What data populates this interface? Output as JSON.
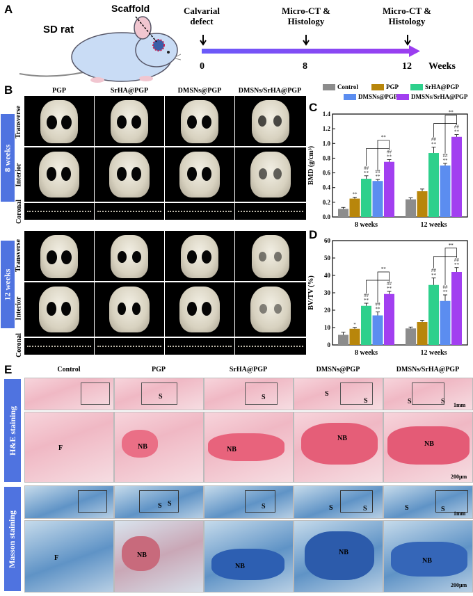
{
  "panels": {
    "A": "A",
    "B": "B",
    "C": "C",
    "D": "D",
    "E": "E"
  },
  "panel_a": {
    "rat_label": "SD rat",
    "scaffold_label": "Scaffold",
    "events": [
      {
        "label1": "Calvarial",
        "label2": "defect"
      },
      {
        "label1": "Micro-CT &",
        "label2": "Histology"
      },
      {
        "label1": "Micro-CT &",
        "label2": "Histology"
      }
    ],
    "ticks": [
      "0",
      "8",
      "12"
    ],
    "unit": "Weeks",
    "colors": {
      "arrow_start": "#6a5af9",
      "arrow_end": "#9b3df0"
    }
  },
  "panel_b": {
    "columns": [
      "PGP",
      "SrHA@PGP",
      "DMSNs@PGP",
      "DMSNs/SrHA@PGP"
    ],
    "groups": [
      {
        "label": "8 weeks",
        "rows": [
          "Transverse",
          "Interior",
          "Coronal"
        ]
      },
      {
        "label": "12 weeks",
        "rows": [
          "Transverse",
          "Interior",
          "Coronal"
        ]
      }
    ]
  },
  "legend": [
    {
      "name": "Control",
      "color": "#8c8c8c"
    },
    {
      "name": "PGP",
      "color": "#b8860b"
    },
    {
      "name": "SrHA@PGP",
      "color": "#2ed08c"
    },
    {
      "name": "DMSNs@PGP",
      "color": "#5b8df0"
    },
    {
      "name": "DMSNs/SrHA@PGP",
      "color": "#a23ff0"
    }
  ],
  "chart_data": [
    {
      "type": "bar",
      "panel": "C",
      "ylabel": "BMD (g/cm³)",
      "ylim": [
        0.0,
        1.4
      ],
      "yticks": [
        "0.0",
        "0.2",
        "0.4",
        "0.6",
        "0.8",
        "1.0",
        "1.2",
        "1.4"
      ],
      "categories": [
        "8 weeks",
        "12 weeks"
      ],
      "series": [
        {
          "name": "Control",
          "values": [
            0.11,
            0.24
          ],
          "errors": [
            0.02,
            0.02
          ],
          "marks": [
            "",
            ""
          ]
        },
        {
          "name": "PGP",
          "values": [
            0.25,
            0.35
          ],
          "errors": [
            0.02,
            0.03
          ],
          "marks": [
            "**",
            ""
          ]
        },
        {
          "name": "SrHA@PGP",
          "values": [
            0.52,
            0.87
          ],
          "errors": [
            0.04,
            0.08
          ],
          "marks": [
            "##\n**",
            "##\n**"
          ]
        },
        {
          "name": "DMSNs@PGP",
          "values": [
            0.49,
            0.7
          ],
          "errors": [
            0.02,
            0.03
          ],
          "marks": [
            "##\n**",
            "##\n**"
          ]
        },
        {
          "name": "DMSNs/SrHA@PGP",
          "values": [
            0.75,
            1.09
          ],
          "errors": [
            0.03,
            0.03
          ],
          "marks": [
            "##\n**",
            "##\n**"
          ]
        }
      ],
      "sig": "**"
    },
    {
      "type": "bar",
      "panel": "D",
      "ylabel": "BV/TV (%)",
      "ylim": [
        0,
        60
      ],
      "yticks": [
        "0",
        "10",
        "20",
        "30",
        "40",
        "50",
        "60"
      ],
      "categories": [
        "8 weeks",
        "12 weeks"
      ],
      "series": [
        {
          "name": "Control",
          "values": [
            5.8,
            9.5
          ],
          "errors": [
            1.5,
            0.8
          ],
          "marks": [
            "",
            ""
          ]
        },
        {
          "name": "PGP",
          "values": [
            9.3,
            13.2
          ],
          "errors": [
            0.8,
            1.0
          ],
          "marks": [
            "*",
            ""
          ]
        },
        {
          "name": "SrHA@PGP",
          "values": [
            22.5,
            34.5
          ],
          "errors": [
            1.5,
            4.0
          ],
          "marks": [
            "##\n**",
            "##\n**"
          ]
        },
        {
          "name": "DMSNs@PGP",
          "values": [
            17.0,
            25.3
          ],
          "errors": [
            2.0,
            3.5
          ],
          "marks": [
            "##\n**",
            "##\n**"
          ]
        },
        {
          "name": "DMSNs/SrHA@PGP",
          "values": [
            29.3,
            42.0
          ],
          "errors": [
            1.5,
            2.5
          ],
          "marks": [
            "##\n**",
            "##\n**"
          ]
        }
      ],
      "sig": "**"
    }
  ],
  "panel_e": {
    "columns": [
      "Control",
      "PGP",
      "SrHA@PGP",
      "DMSNs@PGP",
      "DMSNs/SrHA@PGP"
    ],
    "stains": [
      "H&E staining",
      "Masson staining"
    ],
    "labels": {
      "s": "S",
      "nb": "NB",
      "f": "F"
    },
    "scale_low": "1mm",
    "scale_high": "200μm"
  }
}
